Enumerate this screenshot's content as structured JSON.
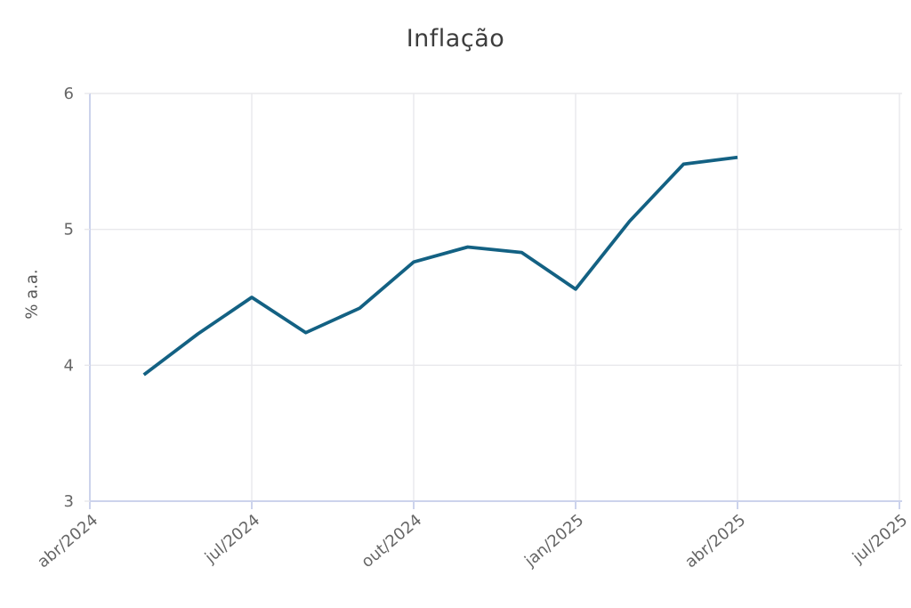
{
  "chart_data": {
    "type": "line",
    "title": "Inflação",
    "ylabel": "% a.a.",
    "xlabel": "",
    "ylim": [
      3,
      6
    ],
    "yticks": [
      3,
      4,
      5,
      6
    ],
    "xtick_labels": [
      "abr/2024",
      "jul/2024",
      "out/2024",
      "jan/2025",
      "abr/2025",
      "jul/2025"
    ],
    "x_axis_range": [
      "abr/2024",
      "jul/2025"
    ],
    "x": [
      "mai/2024",
      "jun/2024",
      "jul/2024",
      "ago/2024",
      "set/2024",
      "out/2024",
      "nov/2024",
      "dez/2024",
      "jan/2025",
      "fev/2025",
      "mar/2025",
      "abr/2025"
    ],
    "values": [
      3.93,
      4.23,
      4.5,
      4.24,
      4.42,
      4.76,
      4.87,
      4.83,
      4.56,
      5.06,
      5.48,
      5.53
    ],
    "grid": true,
    "legend": "none",
    "colors": {
      "line": "#136183",
      "grid": "#e8e8ec",
      "axis": "#ccd3ec",
      "tick_label": "#666666",
      "title": "#3d3d3d",
      "axis_label": "#555555",
      "background": "#ffffff"
    }
  }
}
